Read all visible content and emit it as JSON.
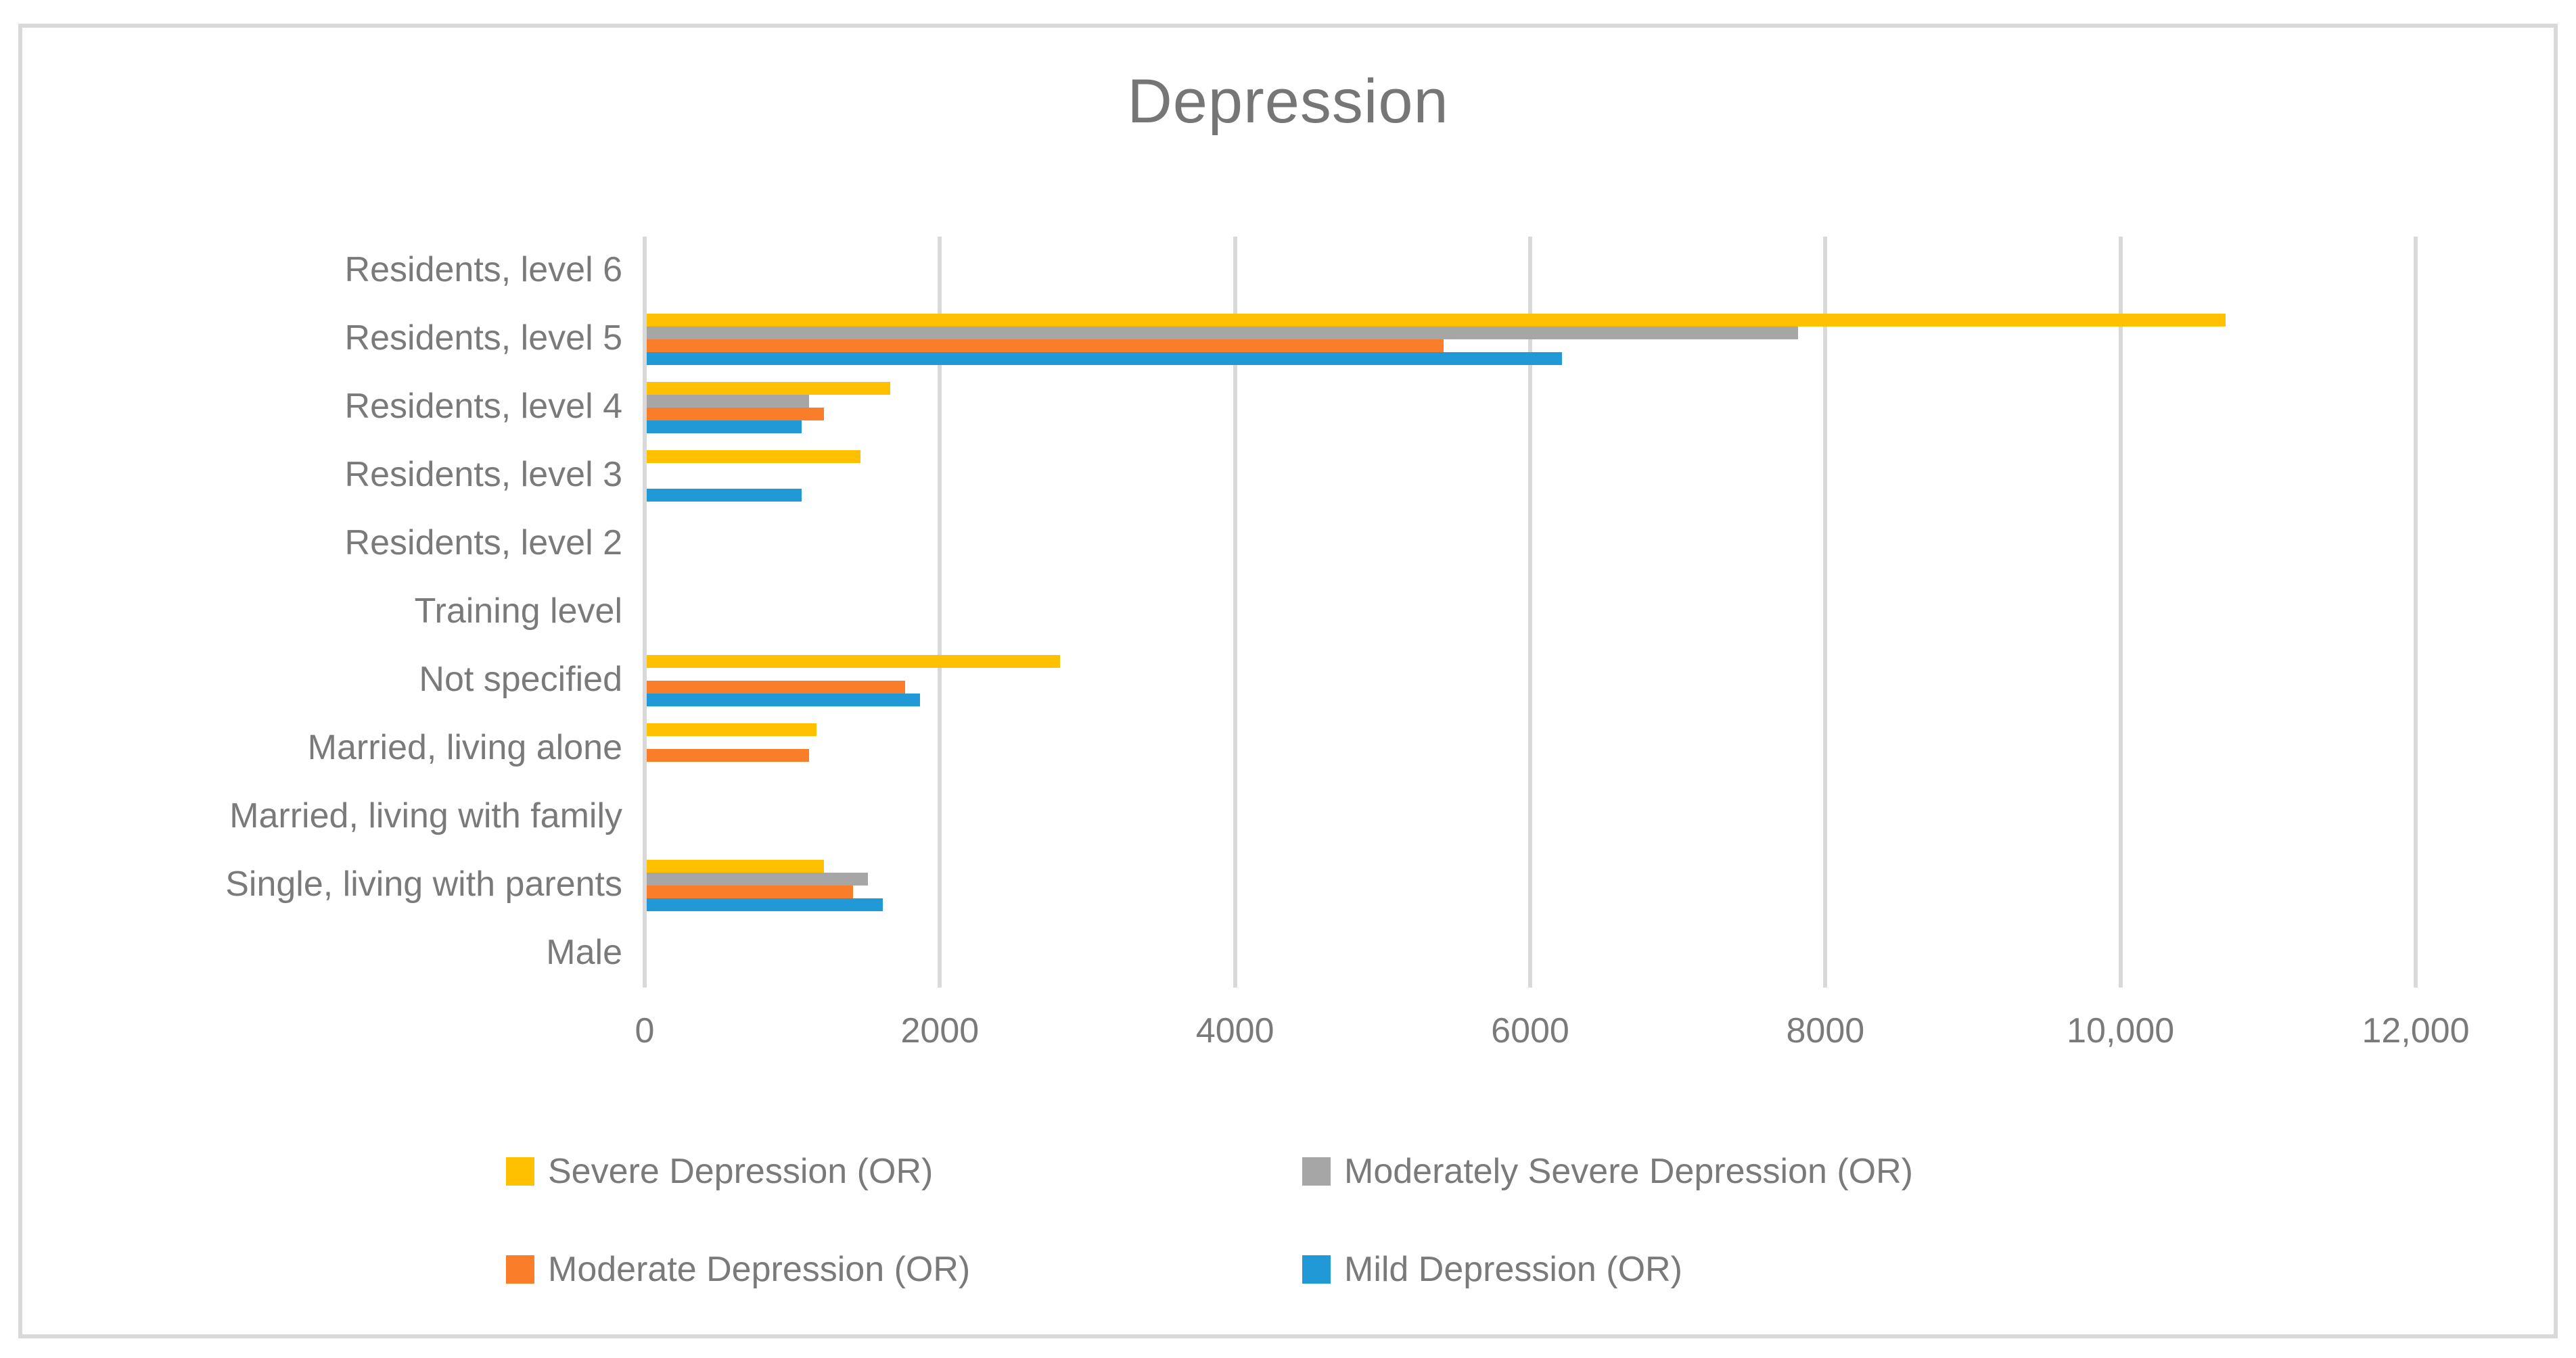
{
  "title": "Depression",
  "colors": {
    "severe": "#FFC000",
    "moderately_severe": "#A6A6A6",
    "moderate": "#FA7D29",
    "mild": "#2199D6",
    "gridline": "#D9D9D9",
    "axis_line": "#D9D9D9",
    "text": "#7A7A7A",
    "title_text": "#767676",
    "background": "#FFFFFF"
  },
  "chart_data": {
    "type": "bar",
    "orientation": "horizontal",
    "title": "Depression",
    "xlabel": "",
    "ylabel": "",
    "xlim": [
      0,
      12000
    ],
    "grid": "vertical-only",
    "legend_position": "bottom",
    "categories": [
      "Residents, level 6",
      "Residents, level 5",
      "Residents, level 4",
      "Residents, level 3",
      "Residents, level 2",
      "Training level",
      "Not specified",
      "Married, living alone",
      "Married, living with family",
      "Single, living with parents",
      "Male"
    ],
    "series": [
      {
        "name": "Severe Depression (OR)",
        "color": "#FFC000",
        "values": [
          null,
          10700,
          1650,
          1450,
          null,
          null,
          2800,
          1150,
          null,
          1200,
          null
        ]
      },
      {
        "name": "Moderately Severe Depression (OR)",
        "color": "#A6A6A6",
        "values": [
          null,
          7800,
          1100,
          null,
          null,
          null,
          null,
          null,
          null,
          1500,
          null
        ]
      },
      {
        "name": "Moderate Depression (OR)",
        "color": "#FA7D29",
        "values": [
          null,
          5400,
          1200,
          null,
          null,
          null,
          1750,
          1100,
          null,
          1400,
          null
        ]
      },
      {
        "name": "Mild Depression (OR)",
        "color": "#2199D6",
        "values": [
          null,
          6200,
          1050,
          1050,
          null,
          null,
          1850,
          null,
          null,
          1600,
          null
        ]
      }
    ],
    "x_axis": {
      "tick_values": [
        0,
        2000,
        4000,
        6000,
        8000,
        10000,
        12000
      ],
      "tick_labels": [
        "0",
        "2000",
        "4000",
        "6000",
        "8000",
        "10,000",
        "12,000"
      ]
    }
  }
}
